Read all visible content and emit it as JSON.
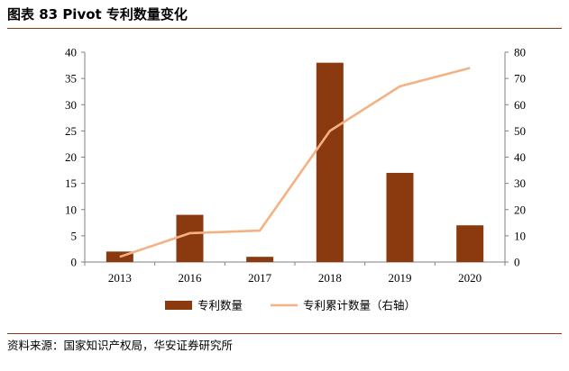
{
  "figure": {
    "title": "图表 83 Pivot 专利数量变化",
    "source": "资料来源：国家知识产权局，华安证券研究所"
  },
  "colors": {
    "bar": "#8b3a0f",
    "line": "#f4b183",
    "rule": "#8a3b12",
    "axis": "#808080"
  },
  "chart_data": {
    "type": "bar",
    "categories": [
      "2013",
      "2016",
      "2017",
      "2018",
      "2019",
      "2020"
    ],
    "series": [
      {
        "name": "专利数量",
        "type": "bar",
        "axis": "left",
        "values": [
          2,
          9,
          1,
          38,
          17,
          7
        ]
      },
      {
        "name": "专利累计数量（右轴）",
        "type": "line",
        "axis": "right",
        "values": [
          2,
          11,
          12,
          50,
          67,
          74
        ]
      }
    ],
    "y_left": {
      "min": 0,
      "max": 40,
      "step": 5
    },
    "y_right": {
      "min": 0,
      "max": 80,
      "step": 10
    },
    "grid": false,
    "legend_position": "bottom"
  }
}
